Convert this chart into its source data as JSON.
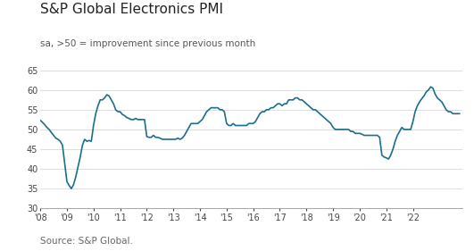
{
  "title": "S&P Global Electronics PMI",
  "subtitle": "sa, >50 = improvement since previous month",
  "source": "Source: S&P Global.",
  "line_color": "#1b6e8c",
  "background_color": "#ffffff",
  "ylim": [
    30,
    65
  ],
  "yticks": [
    30,
    35,
    40,
    45,
    50,
    55,
    60,
    65
  ],
  "xtick_years": [
    "'08",
    "'09",
    "'10",
    "'11",
    "'12",
    "'13",
    "'14",
    "'15",
    "'16",
    "'17",
    "'18",
    "'19",
    "'20",
    "'21",
    "'22"
  ],
  "title_fontsize": 11,
  "subtitle_fontsize": 7.5,
  "source_fontsize": 7.5,
  "line_width": 1.2,
  "values": [
    52.3,
    51.8,
    51.2,
    50.5,
    50.0,
    49.2,
    48.5,
    47.8,
    47.5,
    47.0,
    46.0,
    41.5,
    36.8,
    35.8,
    35.0,
    36.0,
    38.0,
    40.5,
    43.0,
    46.0,
    47.5,
    47.0,
    47.2,
    47.0,
    51.0,
    54.0,
    56.0,
    57.5,
    57.5,
    58.0,
    58.8,
    58.5,
    57.5,
    56.5,
    55.0,
    54.5,
    54.5,
    53.8,
    53.5,
    53.0,
    52.8,
    52.5,
    52.5,
    52.8,
    52.5,
    52.5,
    52.5,
    52.5,
    48.2,
    48.0,
    48.0,
    48.5,
    48.0,
    48.0,
    47.8,
    47.5,
    47.5,
    47.5,
    47.5,
    47.5,
    47.5,
    47.5,
    47.8,
    47.5,
    47.8,
    48.5,
    49.5,
    50.5,
    51.5,
    51.5,
    51.5,
    51.5,
    52.0,
    52.5,
    53.5,
    54.5,
    55.0,
    55.5,
    55.5,
    55.5,
    55.5,
    55.0,
    55.0,
    54.5,
    51.5,
    51.0,
    51.0,
    51.5,
    51.0,
    51.0,
    51.0,
    51.0,
    51.0,
    51.0,
    51.5,
    51.5,
    51.5,
    52.0,
    53.0,
    54.0,
    54.5,
    54.5,
    55.0,
    55.0,
    55.5,
    55.5,
    56.0,
    56.5,
    56.5,
    56.0,
    56.5,
    56.5,
    57.5,
    57.5,
    57.5,
    58.0,
    58.0,
    57.5,
    57.5,
    57.0,
    56.5,
    56.0,
    55.5,
    55.0,
    55.0,
    54.5,
    54.0,
    53.5,
    53.0,
    52.5,
    52.0,
    51.5,
    50.5,
    50.0,
    50.0,
    50.0,
    50.0,
    50.0,
    50.0,
    50.0,
    49.5,
    49.5,
    49.0,
    49.0,
    49.0,
    48.8,
    48.5,
    48.5,
    48.5,
    48.5,
    48.5,
    48.5,
    48.5,
    48.0,
    43.5,
    43.0,
    42.8,
    42.5,
    43.5,
    45.0,
    47.0,
    48.5,
    49.5,
    50.5,
    50.0,
    50.0,
    50.0,
    50.0,
    52.0,
    54.5,
    56.0,
    57.0,
    57.8,
    58.5,
    59.5,
    60.0,
    60.8,
    60.5,
    59.0,
    58.0,
    57.5,
    57.0,
    56.0,
    55.0,
    54.5,
    54.5,
    54.0,
    54.0,
    54.0,
    54.0
  ]
}
